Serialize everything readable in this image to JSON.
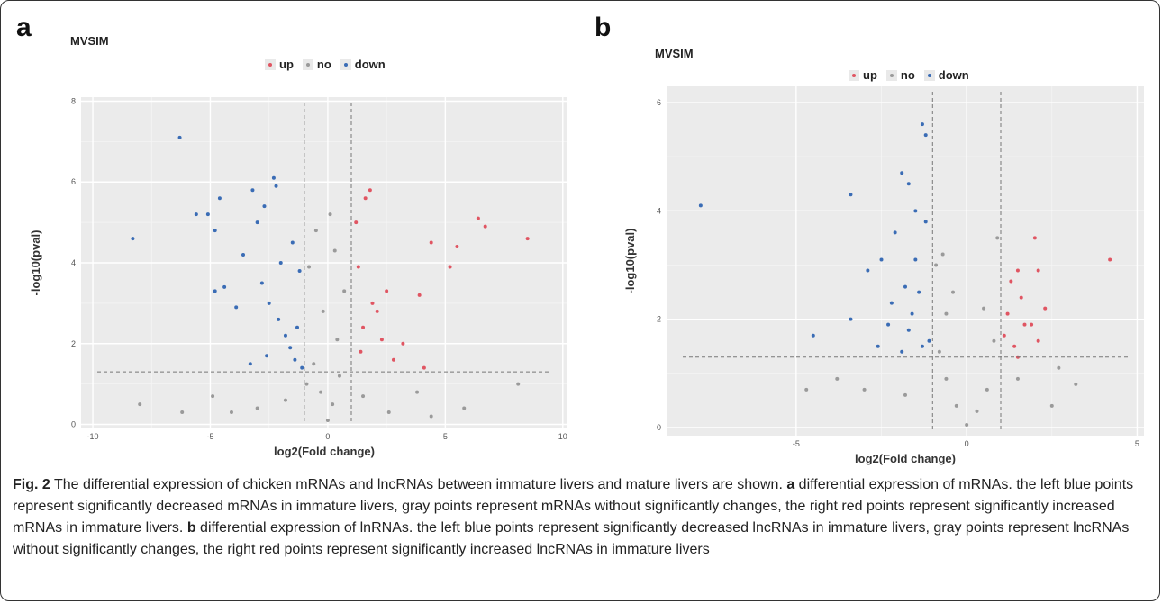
{
  "panel_a": {
    "letter": "a",
    "title": "MVSIM"
  },
  "panel_b": {
    "letter": "b",
    "title": "MVSIM"
  },
  "legend": {
    "up": "up",
    "no": "no",
    "down": "down",
    "colors": {
      "up": "#e05562",
      "no": "#9a9a9a",
      "down": "#3a6cb5"
    }
  },
  "caption": {
    "fig_label": "Fig. 2",
    "intro": " The differential expression of chicken mRNAs and lncRNAs between immature livers and mature livers are shown. ",
    "a_label": "a",
    "a_text": " differential expression of mRNAs. the left blue points represent significantly decreased mRNAs in immature livers, gray points represent mRNAs without significantly changes, the right red points represent significantly increased mRNAs in immature livers. ",
    "b_label": "b",
    "b_text": " differential expression of lnRNAs. the left blue points represent significantly decreased lncRNAs in immature livers, gray points represent lncRNAs without significantly changes, the right red points represent significantly increased lncRNAs in immature livers"
  },
  "chart_data": [
    {
      "type": "scatter",
      "title": "MVSIM",
      "xlabel": "log2(Fold change)",
      "ylabel": "-log10(pval)",
      "xlim": [
        -10.5,
        10.2
      ],
      "ylim": [
        -0.1,
        8.1
      ],
      "xticks": [
        -10,
        -5,
        0,
        5,
        10
      ],
      "yticks": [
        0,
        2,
        4,
        6,
        8
      ],
      "grid": true,
      "legend": "top-center",
      "thresholds": {
        "x": [
          -1,
          1
        ],
        "y": 1.3
      },
      "series": [
        {
          "name": "up",
          "points": [
            [
              6.4,
              5.1
            ],
            [
              8.5,
              4.6
            ],
            [
              6.7,
              4.9
            ],
            [
              5.5,
              4.4
            ],
            [
              5.2,
              3.9
            ],
            [
              4.4,
              4.5
            ],
            [
              1.8,
              5.8
            ],
            [
              1.6,
              5.6
            ],
            [
              1.2,
              5.0
            ],
            [
              3.9,
              3.2
            ],
            [
              2.5,
              3.3
            ],
            [
              2.1,
              2.8
            ],
            [
              1.5,
              2.4
            ],
            [
              3.2,
              2.0
            ],
            [
              2.8,
              1.6
            ],
            [
              4.1,
              1.4
            ],
            [
              1.3,
              3.9
            ],
            [
              1.9,
              3.0
            ],
            [
              2.3,
              2.1
            ],
            [
              1.4,
              1.8
            ]
          ]
        },
        {
          "name": "no",
          "points": [
            [
              0.0,
              0.1
            ],
            [
              0.2,
              0.5
            ],
            [
              -0.3,
              0.8
            ],
            [
              0.5,
              1.2
            ],
            [
              -0.6,
              1.5
            ],
            [
              0.4,
              2.1
            ],
            [
              -0.2,
              2.8
            ],
            [
              0.7,
              3.3
            ],
            [
              -0.8,
              3.9
            ],
            [
              0.3,
              4.3
            ],
            [
              -0.5,
              4.8
            ],
            [
              0.1,
              5.2
            ],
            [
              -0.9,
              1.0
            ],
            [
              1.5,
              0.7
            ],
            [
              -1.8,
              0.6
            ],
            [
              2.6,
              0.3
            ],
            [
              -3.0,
              0.4
            ],
            [
              3.8,
              0.8
            ],
            [
              -4.9,
              0.7
            ],
            [
              5.8,
              0.4
            ],
            [
              -6.2,
              0.3
            ],
            [
              -8.0,
              0.5
            ],
            [
              8.1,
              1.0
            ],
            [
              4.4,
              0.2
            ],
            [
              -4.1,
              0.3
            ]
          ]
        },
        {
          "name": "down",
          "points": [
            [
              -6.3,
              7.1
            ],
            [
              -8.3,
              4.6
            ],
            [
              -5.6,
              5.2
            ],
            [
              -5.1,
              5.2
            ],
            [
              -4.6,
              5.6
            ],
            [
              -4.8,
              4.8
            ],
            [
              -4.8,
              3.3
            ],
            [
              -4.4,
              3.4
            ],
            [
              -3.2,
              5.8
            ],
            [
              -2.3,
              6.1
            ],
            [
              -2.2,
              5.9
            ],
            [
              -2.7,
              5.4
            ],
            [
              -3.0,
              5.0
            ],
            [
              -3.6,
              4.2
            ],
            [
              -2.8,
              3.5
            ],
            [
              -2.5,
              3.0
            ],
            [
              -2.1,
              2.6
            ],
            [
              -1.8,
              2.2
            ],
            [
              -1.6,
              1.9
            ],
            [
              -1.4,
              1.6
            ],
            [
              -3.3,
              1.5
            ],
            [
              -2.6,
              1.7
            ],
            [
              -3.9,
              2.9
            ],
            [
              -1.2,
              3.8
            ],
            [
              -1.5,
              4.5
            ],
            [
              -2.0,
              4.0
            ],
            [
              -1.3,
              2.4
            ],
            [
              -1.1,
              1.4
            ]
          ]
        }
      ]
    },
    {
      "type": "scatter",
      "title": "MVSIM",
      "xlabel": "log2(Fold change)",
      "ylabel": "-log10(pval)",
      "xlim": [
        -8.8,
        5.2
      ],
      "ylim": [
        -0.15,
        6.3
      ],
      "xticks": [
        -5,
        0,
        5
      ],
      "yticks": [
        0,
        2,
        4,
        6
      ],
      "grid": true,
      "legend": "top-center",
      "thresholds": {
        "x": [
          -1,
          1
        ],
        "y": 1.3
      },
      "series": [
        {
          "name": "up",
          "points": [
            [
              4.2,
              3.1
            ],
            [
              2.0,
              3.5
            ],
            [
              2.1,
              2.9
            ],
            [
              1.5,
              2.9
            ],
            [
              2.3,
              2.2
            ],
            [
              1.6,
              2.4
            ],
            [
              1.3,
              2.7
            ],
            [
              1.2,
              2.1
            ],
            [
              1.7,
              1.9
            ],
            [
              2.1,
              1.6
            ],
            [
              1.4,
              1.5
            ],
            [
              1.1,
              1.7
            ],
            [
              1.5,
              1.3
            ],
            [
              1.9,
              1.9
            ]
          ]
        },
        {
          "name": "no",
          "points": [
            [
              0.0,
              0.05
            ],
            [
              0.3,
              0.3
            ],
            [
              -0.3,
              0.4
            ],
            [
              0.6,
              0.7
            ],
            [
              -0.6,
              0.9
            ],
            [
              -0.8,
              1.4
            ],
            [
              0.8,
              1.6
            ],
            [
              -0.6,
              2.1
            ],
            [
              -0.9,
              3.0
            ],
            [
              0.9,
              3.5
            ],
            [
              1.5,
              0.9
            ],
            [
              -1.8,
              0.6
            ],
            [
              2.5,
              0.4
            ],
            [
              -3.0,
              0.7
            ],
            [
              3.2,
              0.8
            ],
            [
              -4.7,
              0.7
            ],
            [
              -3.8,
              0.9
            ],
            [
              2.7,
              1.1
            ],
            [
              -0.4,
              2.5
            ],
            [
              0.5,
              2.2
            ],
            [
              -0.7,
              3.2
            ]
          ]
        },
        {
          "name": "down",
          "points": [
            [
              -7.8,
              4.1
            ],
            [
              -3.4,
              4.3
            ],
            [
              -1.3,
              5.6
            ],
            [
              -1.2,
              5.4
            ],
            [
              -1.9,
              4.7
            ],
            [
              -1.7,
              4.5
            ],
            [
              -2.1,
              3.6
            ],
            [
              -1.5,
              4.0
            ],
            [
              -1.2,
              3.8
            ],
            [
              -2.5,
              3.1
            ],
            [
              -2.9,
              2.9
            ],
            [
              -1.8,
              2.6
            ],
            [
              -1.4,
              2.5
            ],
            [
              -2.2,
              2.3
            ],
            [
              -1.6,
              2.1
            ],
            [
              -3.4,
              2.0
            ],
            [
              -4.5,
              1.7
            ],
            [
              -2.6,
              1.5
            ],
            [
              -1.9,
              1.4
            ],
            [
              -1.3,
              1.5
            ],
            [
              -1.7,
              1.8
            ],
            [
              -1.1,
              1.6
            ],
            [
              -2.3,
              1.9
            ],
            [
              -1.5,
              3.1
            ]
          ]
        }
      ]
    }
  ]
}
